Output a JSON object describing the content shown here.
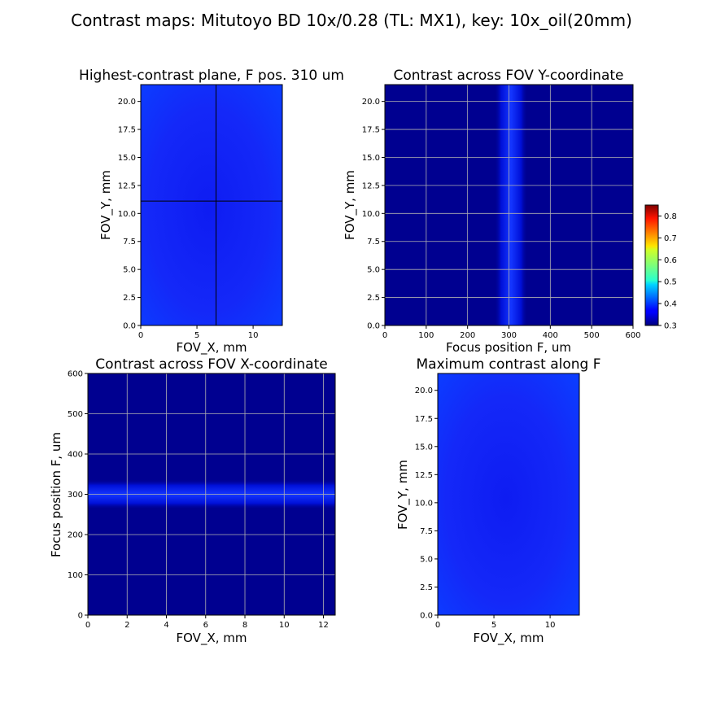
{
  "figure": {
    "suptitle": "Contrast maps: Mitutoyo BD 10x/0.28 (TL: MX1), key: 10x_oil(20mm)"
  },
  "colorbar": {
    "colormap": "jet",
    "range": [
      0.3,
      0.85
    ],
    "ticks": [
      "0.8",
      "0.7",
      "0.6",
      "0.5",
      "0.4",
      "0.3"
    ]
  },
  "chart_data": [
    {
      "type": "heatmap",
      "title": "Highest-contrast plane, F pos. 310 um",
      "xlabel": "FOV_X, mm",
      "ylabel": "FOV_Y, mm",
      "xlim": [
        0,
        12.6
      ],
      "ylim": [
        0,
        21.5
      ],
      "xticks": [
        "0",
        "5",
        "10"
      ],
      "yticks": [
        "0.0",
        "2.5",
        "5.0",
        "7.5",
        "10.0",
        "12.5",
        "15.0",
        "17.5",
        "20.0"
      ],
      "grid": false,
      "crosshair": {
        "x": 6.7,
        "y": 11.1
      },
      "value_range": [
        0.34,
        0.39
      ],
      "approx_center_value": 0.35,
      "approx_edge_value": 0.385
    },
    {
      "type": "heatmap",
      "title": "Contrast across FOV Y-coordinate",
      "xlabel": "Focus position F, um",
      "ylabel": "FOV_Y, mm",
      "xlim": [
        0,
        600
      ],
      "ylim": [
        0,
        21.5
      ],
      "xticks": [
        "0",
        "100",
        "200",
        "300",
        "400",
        "500",
        "600"
      ],
      "yticks": [
        "0.0",
        "2.5",
        "5.0",
        "7.5",
        "10.0",
        "12.5",
        "15.0",
        "17.5",
        "20.0"
      ],
      "grid": true,
      "band": {
        "peak_focus": 305,
        "width": 80
      },
      "value_range": [
        0.3,
        0.39
      ]
    },
    {
      "type": "heatmap",
      "title": "Contrast across FOV X-coordinate",
      "xlabel": "FOV_X, mm",
      "ylabel": "Focus position F, um",
      "xlim": [
        0,
        12.6
      ],
      "ylim": [
        0,
        600
      ],
      "xticks": [
        "0",
        "2",
        "4",
        "6",
        "8",
        "10",
        "12"
      ],
      "yticks": [
        "0",
        "100",
        "200",
        "300",
        "400",
        "500",
        "600"
      ],
      "grid": true,
      "band": {
        "peak_focus": 300,
        "width": 75
      },
      "value_range": [
        0.3,
        0.39
      ]
    },
    {
      "type": "heatmap",
      "title": "Maximum contrast along F",
      "xlabel": "FOV_X, mm",
      "ylabel": "FOV_Y, mm",
      "xlim": [
        0,
        12.6
      ],
      "ylim": [
        0,
        21.5
      ],
      "xticks": [
        "0",
        "5",
        "10"
      ],
      "yticks": [
        "0.0",
        "2.5",
        "5.0",
        "7.5",
        "10.0",
        "12.5",
        "15.0",
        "17.5",
        "20.0"
      ],
      "grid": false,
      "value_range": [
        0.34,
        0.39
      ],
      "approx_center_value": 0.35,
      "approx_edge_value": 0.385
    }
  ]
}
